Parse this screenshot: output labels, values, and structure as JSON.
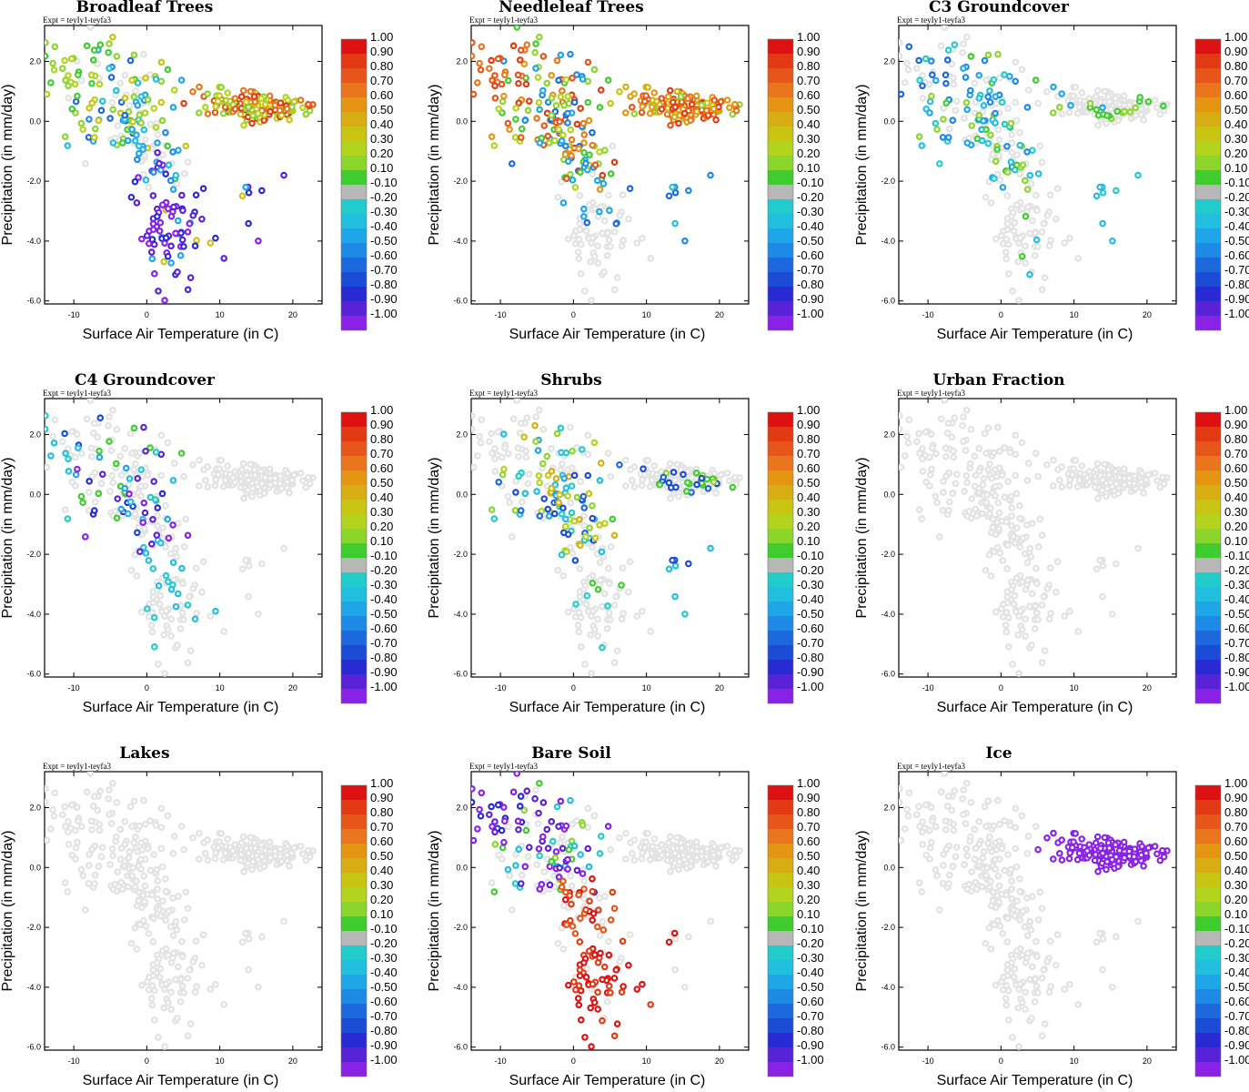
{
  "figure": {
    "experiment_label": "Expt = teyIy1-teyfa3"
  },
  "chart_data": [
    {
      "type": "scatter",
      "title": "Broadleaf Trees",
      "xlabel": "Surface Air Temperature (in C)",
      "ylabel": "Precipitation (in mm/day)",
      "xlim": [
        -14,
        24
      ],
      "ylim": [
        -6.1,
        3.2
      ],
      "xticks": [
        "-10",
        "0",
        "10",
        "20"
      ],
      "yticks": [
        "2.0",
        "0.0",
        "-2.0",
        "-4.0",
        "-6.0"
      ],
      "colorbar_ticks": [
        "1.00",
        "0.90",
        "0.80",
        "0.70",
        "0.60",
        "0.50",
        "0.40",
        "0.30",
        "0.20",
        "0.10",
        "-0.10",
        "-0.20",
        "-0.30",
        "-0.40",
        "-0.50",
        "-0.60",
        "-0.70",
        "-0.80",
        "-0.90",
        "-1.00"
      ],
      "pattern": "broadleaf"
    },
    {
      "type": "scatter",
      "title": "Needleleaf Trees",
      "xlabel": "Surface Air Temperature (in C)",
      "ylabel": "Precipitation (in mm/day)",
      "xlim": [
        -14,
        24
      ],
      "ylim": [
        -6.1,
        3.2
      ],
      "xticks": [
        "-10",
        "0",
        "10",
        "20"
      ],
      "yticks": [
        "2.0",
        "0.0",
        "-2.0",
        "-4.0",
        "-6.0"
      ],
      "colorbar_ticks": [
        "1.00",
        "0.90",
        "0.80",
        "0.70",
        "0.60",
        "0.50",
        "0.40",
        "0.30",
        "0.20",
        "0.10",
        "-0.10",
        "-0.20",
        "-0.30",
        "-0.40",
        "-0.50",
        "-0.60",
        "-0.70",
        "-0.80",
        "-0.90",
        "-1.00"
      ],
      "pattern": "needleleaf"
    },
    {
      "type": "scatter",
      "title": "C3 Groundcover",
      "xlabel": "Surface Air Temperature (in C)",
      "ylabel": "Precipitation (in mm/day)",
      "xlim": [
        -14,
        24
      ],
      "ylim": [
        -6.1,
        3.2
      ],
      "xticks": [
        "-10",
        "0",
        "10",
        "20"
      ],
      "yticks": [
        "2.0",
        "0.0",
        "-2.0",
        "-4.0",
        "-6.0"
      ],
      "colorbar_ticks": [
        "1.00",
        "0.90",
        "0.80",
        "0.70",
        "0.60",
        "0.50",
        "0.40",
        "0.30",
        "0.20",
        "0.10",
        "-0.10",
        "-0.20",
        "-0.30",
        "-0.40",
        "-0.50",
        "-0.60",
        "-0.70",
        "-0.80",
        "-0.90",
        "-1.00"
      ],
      "pattern": "c3"
    },
    {
      "type": "scatter",
      "title": "C4 Groundcover",
      "xlabel": "Surface Air Temperature (in C)",
      "ylabel": "Precipitation (in mm/day)",
      "xlim": [
        -14,
        24
      ],
      "ylim": [
        -6.1,
        3.2
      ],
      "xticks": [
        "-10",
        "0",
        "10",
        "20"
      ],
      "yticks": [
        "2.0",
        "0.0",
        "-2.0",
        "-4.0",
        "-6.0"
      ],
      "colorbar_ticks": [
        "1.00",
        "0.90",
        "0.80",
        "0.70",
        "0.60",
        "0.50",
        "0.40",
        "0.30",
        "0.20",
        "0.10",
        "-0.10",
        "-0.20",
        "-0.30",
        "-0.40",
        "-0.50",
        "-0.60",
        "-0.70",
        "-0.80",
        "-0.90",
        "-1.00"
      ],
      "pattern": "c4"
    },
    {
      "type": "scatter",
      "title": "Shrubs",
      "xlabel": "Surface Air Temperature (in C)",
      "ylabel": "Precipitation (in mm/day)",
      "xlim": [
        -14,
        24
      ],
      "ylim": [
        -6.1,
        3.2
      ],
      "xticks": [
        "-10",
        "0",
        "10",
        "20"
      ],
      "yticks": [
        "2.0",
        "0.0",
        "-2.0",
        "-4.0",
        "-6.0"
      ],
      "colorbar_ticks": [
        "1.00",
        "0.90",
        "0.80",
        "0.70",
        "0.60",
        "0.50",
        "0.40",
        "0.30",
        "0.20",
        "0.10",
        "-0.10",
        "-0.20",
        "-0.30",
        "-0.40",
        "-0.50",
        "-0.60",
        "-0.70",
        "-0.80",
        "-0.90",
        "-1.00"
      ],
      "pattern": "shrubs"
    },
    {
      "type": "scatter",
      "title": "Urban Fraction",
      "xlabel": "Surface Air Temperature (in C)",
      "ylabel": "Precipitation (in mm/day)",
      "xlim": [
        -14,
        24
      ],
      "ylim": [
        -6.1,
        3.2
      ],
      "xticks": [
        "-10",
        "0",
        "10",
        "20"
      ],
      "yticks": [
        "2.0",
        "0.0",
        "-2.0",
        "-4.0",
        "-6.0"
      ],
      "colorbar_ticks": [
        "1.00",
        "0.90",
        "0.80",
        "0.70",
        "0.60",
        "0.50",
        "0.40",
        "0.30",
        "0.20",
        "0.10",
        "-0.10",
        "-0.20",
        "-0.30",
        "-0.40",
        "-0.50",
        "-0.60",
        "-0.70",
        "-0.80",
        "-0.90",
        "-1.00"
      ],
      "pattern": "none"
    },
    {
      "type": "scatter",
      "title": "Lakes",
      "xlabel": "Surface Air Temperature (in C)",
      "ylabel": "Precipitation (in mm/day)",
      "xlim": [
        -14,
        24
      ],
      "ylim": [
        -6.1,
        3.2
      ],
      "xticks": [
        "-10",
        "0",
        "10",
        "20"
      ],
      "yticks": [
        "2.0",
        "0.0",
        "-2.0",
        "-4.0",
        "-6.0"
      ],
      "colorbar_ticks": [
        "1.00",
        "0.90",
        "0.80",
        "0.70",
        "0.60",
        "0.50",
        "0.40",
        "0.30",
        "0.20",
        "0.10",
        "-0.10",
        "-0.20",
        "-0.30",
        "-0.40",
        "-0.50",
        "-0.60",
        "-0.70",
        "-0.80",
        "-0.90",
        "-1.00"
      ],
      "pattern": "none"
    },
    {
      "type": "scatter",
      "title": "Bare Soil",
      "xlabel": "Surface Air Temperature (in C)",
      "ylabel": "Precipitation (in mm/day)",
      "xlim": [
        -14,
        24
      ],
      "ylim": [
        -6.1,
        3.2
      ],
      "xticks": [
        "-10",
        "0",
        "10",
        "20"
      ],
      "yticks": [
        "2.0",
        "0.0",
        "-2.0",
        "-4.0",
        "-6.0"
      ],
      "colorbar_ticks": [
        "1.00",
        "0.90",
        "0.80",
        "0.70",
        "0.60",
        "0.50",
        "0.40",
        "0.30",
        "0.20",
        "0.10",
        "-0.10",
        "-0.20",
        "-0.30",
        "-0.40",
        "-0.50",
        "-0.60",
        "-0.70",
        "-0.80",
        "-0.90",
        "-1.00"
      ],
      "pattern": "baresoil"
    },
    {
      "type": "scatter",
      "title": "Ice",
      "xlabel": "Surface Air Temperature (in C)",
      "ylabel": "Precipitation (in mm/day)",
      "xlim": [
        -14,
        24
      ],
      "ylim": [
        -6.1,
        3.2
      ],
      "xticks": [
        "-10",
        "0",
        "10",
        "20"
      ],
      "yticks": [
        "2.0",
        "0.0",
        "-2.0",
        "-4.0",
        "-6.0"
      ],
      "colorbar_ticks": [
        "1.00",
        "0.90",
        "0.80",
        "0.70",
        "0.60",
        "0.50",
        "0.40",
        "0.30",
        "0.20",
        "0.10",
        "-0.10",
        "-0.20",
        "-0.30",
        "-0.40",
        "-0.50",
        "-0.60",
        "-0.70",
        "-0.80",
        "-0.90",
        "-1.00"
      ],
      "pattern": "ice"
    }
  ],
  "colorbar": {
    "colors": [
      "#dd1111",
      "#e23b14",
      "#e6561a",
      "#e9761d",
      "#e49612",
      "#d6ad12",
      "#c8c412",
      "#b2d41e",
      "#8ad62c",
      "#3fcc2e",
      "#b7b7b7",
      "#22cccc",
      "#21bee0",
      "#1fa6e8",
      "#1e8ae6",
      "#1c68dc",
      "#1c4bd6",
      "#2a2ad4",
      "#5a22d6",
      "#8a22e6"
    ],
    "no_data_color": "#e3e3e3"
  }
}
